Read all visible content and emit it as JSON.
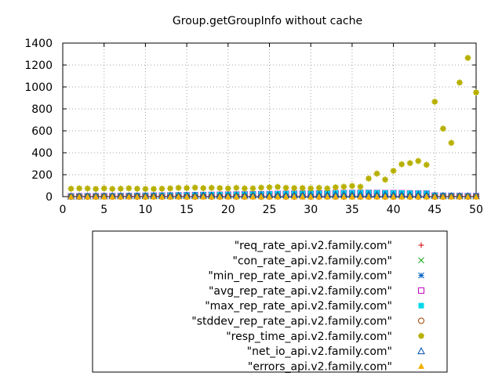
{
  "chart_data": {
    "type": "scatter",
    "title": "Group.getGroupInfo without cache",
    "xlabel": "",
    "ylabel": "",
    "xlim": [
      0,
      50
    ],
    "ylim": [
      0,
      1400
    ],
    "x_ticks": [
      0,
      5,
      10,
      15,
      20,
      25,
      30,
      35,
      40,
      45,
      50
    ],
    "y_ticks": [
      0,
      200,
      400,
      600,
      800,
      1000,
      1200,
      1400
    ],
    "grid": true,
    "legend_position": "bottom",
    "x": [
      1,
      2,
      3,
      4,
      5,
      6,
      7,
      8,
      9,
      10,
      11,
      12,
      13,
      14,
      15,
      16,
      17,
      18,
      19,
      20,
      21,
      22,
      23,
      24,
      25,
      26,
      27,
      28,
      29,
      30,
      31,
      32,
      33,
      34,
      35,
      36,
      37,
      38,
      39,
      40,
      41,
      42,
      43,
      44,
      45,
      46,
      47,
      48,
      49,
      50
    ],
    "series": [
      {
        "name": "\"req_rate_api.v2.family.com\"",
        "marker": "plus",
        "color": "#d00000",
        "values": [
          3,
          3,
          4,
          4,
          5,
          5,
          6,
          6,
          7,
          8,
          9,
          10,
          11,
          12,
          13,
          14,
          15,
          16,
          17,
          18,
          19,
          20,
          21,
          22,
          23,
          24,
          25,
          26,
          27,
          28,
          29,
          30,
          31,
          32,
          33,
          34,
          34,
          33,
          32,
          32,
          31,
          30,
          29,
          28,
          10,
          8,
          7,
          6,
          5,
          5
        ]
      },
      {
        "name": "\"con_rate_api.v2.family.com\"",
        "marker": "cross",
        "color": "#00a000",
        "values": [
          3,
          3,
          4,
          4,
          5,
          5,
          6,
          6,
          7,
          8,
          9,
          10,
          11,
          12,
          13,
          14,
          15,
          16,
          17,
          18,
          19,
          20,
          21,
          22,
          23,
          24,
          25,
          26,
          27,
          28,
          29,
          30,
          31,
          32,
          33,
          34,
          34,
          33,
          32,
          32,
          31,
          30,
          29,
          28,
          10,
          8,
          7,
          6,
          5,
          5
        ]
      },
      {
        "name": "\"min_rep_rate_api.v2.family.com\"",
        "marker": "star",
        "color": "#0060c0",
        "values": [
          2,
          2,
          2,
          3,
          3,
          3,
          4,
          4,
          4,
          5,
          5,
          6,
          6,
          7,
          7,
          8,
          8,
          9,
          9,
          10,
          10,
          11,
          11,
          12,
          12,
          13,
          13,
          14,
          14,
          15,
          15,
          16,
          16,
          17,
          17,
          18,
          18,
          17,
          17,
          16,
          16,
          15,
          15,
          14,
          8,
          7,
          6,
          5,
          4,
          4
        ]
      },
      {
        "name": "\"avg_rep_rate_api.v2.family.com\"",
        "marker": "square-open",
        "color": "#c000c0",
        "values": [
          3,
          3,
          4,
          4,
          5,
          5,
          6,
          6,
          7,
          8,
          9,
          10,
          11,
          12,
          13,
          14,
          15,
          16,
          17,
          18,
          19,
          20,
          21,
          22,
          23,
          24,
          25,
          26,
          27,
          28,
          29,
          30,
          31,
          32,
          33,
          34,
          34,
          33,
          32,
          32,
          31,
          30,
          29,
          28,
          10,
          8,
          7,
          6,
          5,
          5
        ]
      },
      {
        "name": "\"max_rep_rate_api.v2.family.com\"",
        "marker": "square-filled",
        "color": "#00d8e8",
        "values": [
          4,
          4,
          5,
          5,
          6,
          6,
          7,
          7,
          8,
          9,
          10,
          11,
          12,
          13,
          14,
          15,
          16,
          17,
          18,
          19,
          20,
          21,
          22,
          23,
          24,
          25,
          26,
          27,
          28,
          29,
          30,
          31,
          32,
          33,
          34,
          35,
          35,
          34,
          33,
          33,
          32,
          31,
          30,
          29,
          11,
          9,
          8,
          7,
          6,
          6
        ]
      },
      {
        "name": "\"stddev_rep_rate_api.v2.family.com\"",
        "marker": "circle-open",
        "color": "#a04000",
        "values": [
          0,
          0,
          0,
          0,
          1,
          0,
          0,
          1,
          0,
          0,
          1,
          0,
          0,
          1,
          0,
          0,
          1,
          0,
          0,
          1,
          0,
          0,
          1,
          0,
          0,
          1,
          0,
          0,
          1,
          0,
          0,
          1,
          0,
          0,
          1,
          0,
          0,
          1,
          0,
          0,
          1,
          0,
          0,
          1,
          0,
          0,
          1,
          0,
          0,
          1
        ]
      },
      {
        "name": "\"resp_time_api.v2.family.com\"",
        "marker": "star-filled",
        "color": "#b8b000",
        "values": [
          72,
          75,
          74,
          70,
          75,
          70,
          72,
          76,
          72,
          70,
          70,
          72,
          75,
          80,
          78,
          82,
          77,
          80,
          78,
          75,
          80,
          75,
          75,
          82,
          85,
          88,
          80,
          78,
          78,
          75,
          80,
          75,
          85,
          90,
          97,
          90,
          165,
          210,
          155,
          235,
          295,
          305,
          325,
          290,
          865,
          620,
          490,
          1040,
          1265,
          950
        ]
      },
      {
        "name": "\"net_io_api.v2.family.com\"",
        "marker": "triangle-open",
        "color": "#0050b0",
        "values": [
          3,
          3,
          4,
          4,
          4,
          5,
          5,
          5,
          6,
          6,
          7,
          7,
          8,
          8,
          9,
          9,
          10,
          10,
          11,
          11,
          12,
          12,
          13,
          13,
          14,
          14,
          15,
          15,
          16,
          16,
          17,
          17,
          18,
          18,
          19,
          19,
          19,
          18,
          18,
          17,
          17,
          16,
          16,
          15,
          8,
          7,
          6,
          5,
          5,
          5
        ]
      },
      {
        "name": "\"errors_api.v2.family.com\"",
        "marker": "triangle-filled",
        "color": "#f0b000",
        "values": [
          0,
          0,
          0,
          0,
          0,
          0,
          0,
          0,
          0,
          0,
          0,
          0,
          0,
          0,
          0,
          0,
          0,
          0,
          0,
          0,
          0,
          0,
          0,
          0,
          0,
          0,
          0,
          0,
          0,
          0,
          0,
          0,
          0,
          0,
          0,
          0,
          0,
          0,
          0,
          0,
          0,
          0,
          0,
          0,
          0,
          0,
          0,
          0,
          0,
          0
        ]
      }
    ]
  }
}
